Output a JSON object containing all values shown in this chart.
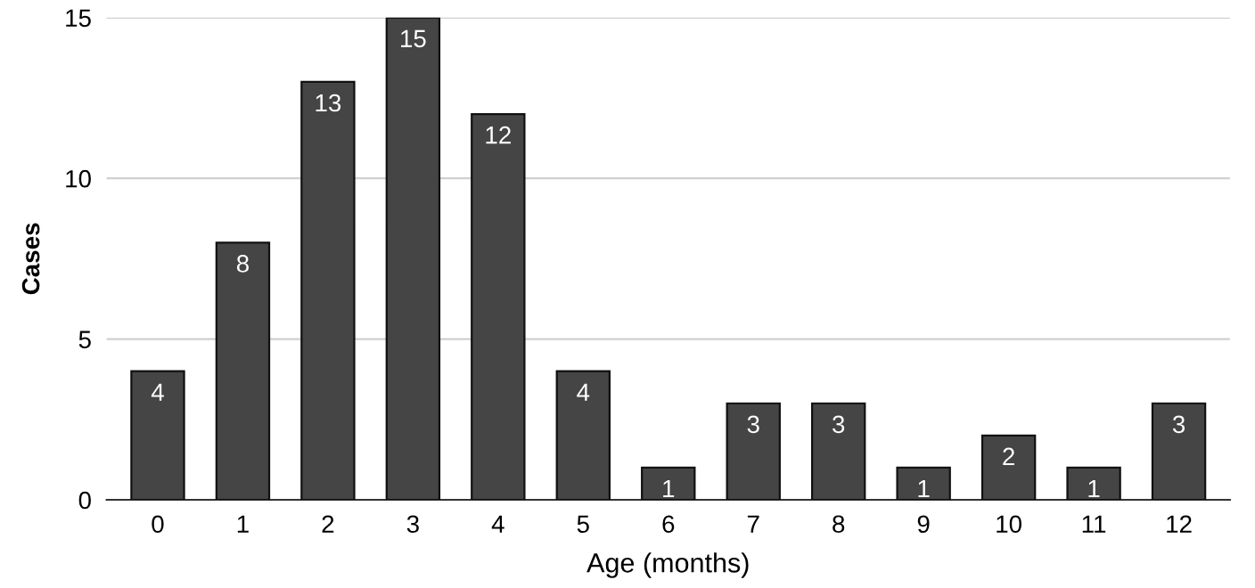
{
  "chart_data": {
    "type": "bar",
    "xlabel": "Age (months)",
    "ylabel": "Cases",
    "categories": [
      "0",
      "1",
      "2",
      "3",
      "4",
      "5",
      "6",
      "7",
      "8",
      "9",
      "10",
      "11",
      "12"
    ],
    "values": [
      4,
      8,
      13,
      15,
      12,
      4,
      1,
      3,
      3,
      1,
      2,
      1,
      3
    ],
    "color": "#454545",
    "ylim": [
      0,
      15
    ],
    "yticks": [
      0,
      5,
      10,
      15
    ],
    "grid": "y",
    "data_labels": true,
    "legend": false
  }
}
